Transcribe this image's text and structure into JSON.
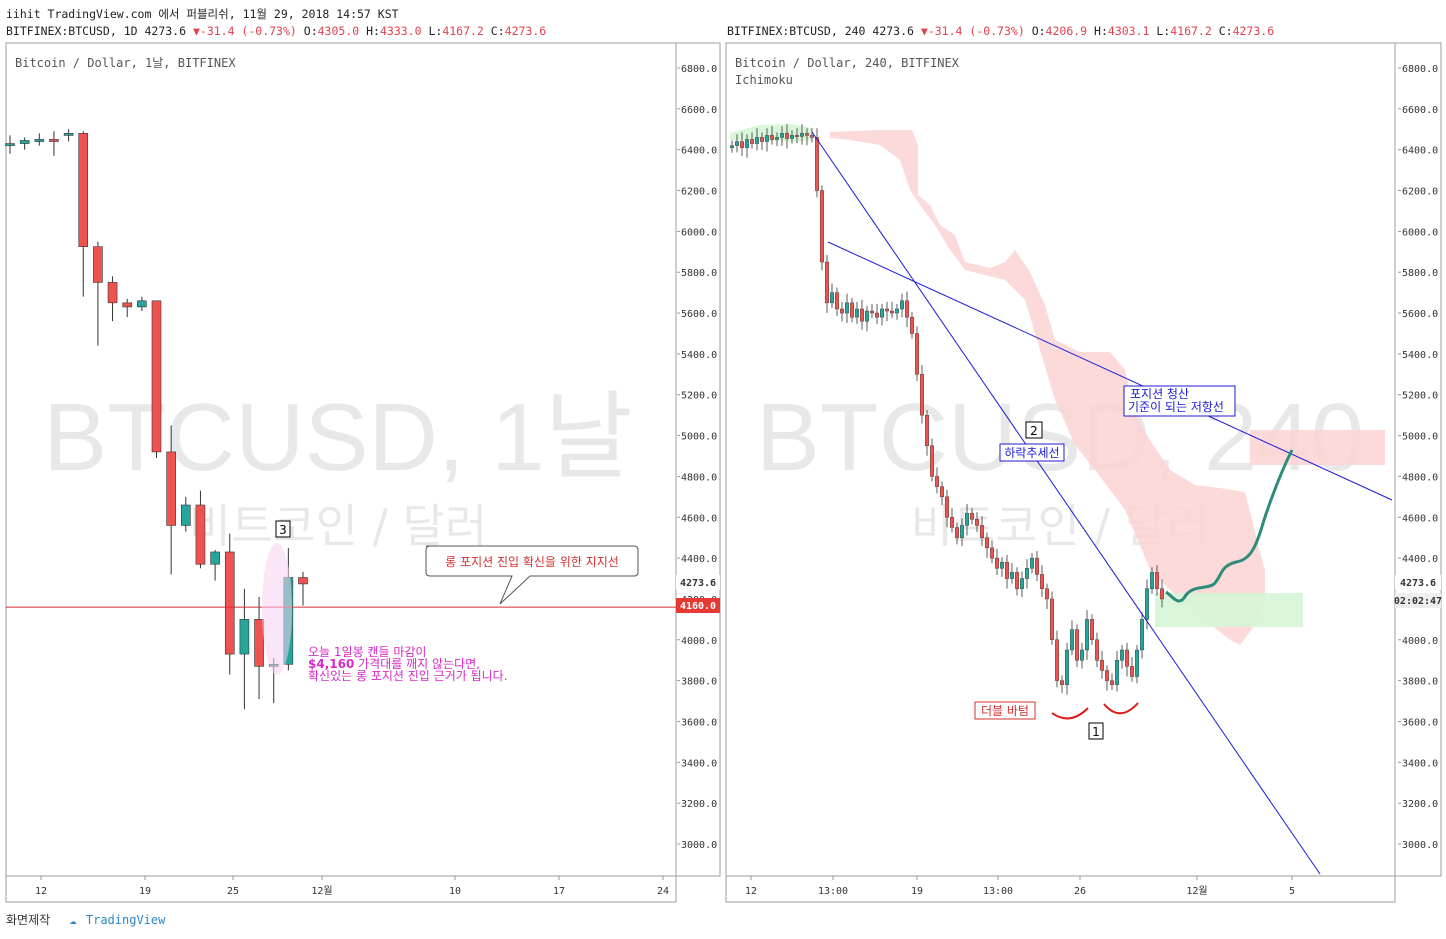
{
  "header": {
    "line1": "iihit TradingView.com 에서 퍼블리쉬, 11월 29, 2018 14:57 KST",
    "left": {
      "symbol": "BITFINEX:BTCUSD, 1D 4273.6",
      "chg": "-31.4 (-0.73%)",
      "o_label": "O:",
      "o": "4305.0",
      "h_label": "H:",
      "h": "4333.0",
      "l_label": "L:",
      "l": "4167.2",
      "c_label": "C:",
      "c": "4273.6"
    },
    "right": {
      "symbol": "BITFINEX:BTCUSD, 240 4273.6",
      "chg": "-31.4 (-0.73%)",
      "o_label": "O:",
      "o": "4206.9",
      "h_label": "H:",
      "h": "4303.1",
      "l_label": "L:",
      "l": "4167.2",
      "c_label": "C:",
      "c": "4273.6"
    }
  },
  "footer": {
    "made_by": "화면제작",
    "brand": "TradingView"
  },
  "colors": {
    "up": "#26a69a",
    "down": "#ef5350",
    "annotation_blue": "#1c1cd6",
    "support_red": "#d32f2f",
    "magenta": "#d829c9",
    "projection": "#2e8b7a",
    "cloud_red": "#fbd3d3",
    "cloud_green": "#d6f5d6"
  },
  "chart_data": [
    {
      "type": "candlestick",
      "title": "Bitcoin / Dollar, 1날, BITFINEX",
      "watermark": "BTCUSD, 1날",
      "watermark_sub": "비트코인 / 달러",
      "ylim": [
        2850,
        6900
      ],
      "y_ticks": [
        "6800.0",
        "6600.0",
        "6400.0",
        "6200.0",
        "6000.0",
        "5800.0",
        "5600.0",
        "5400.0",
        "5200.0",
        "5000.0",
        "4800.0",
        "4600.0",
        "4400.0",
        "4200.0",
        "4000.0",
        "3800.0",
        "3600.0",
        "3400.0",
        "3200.0",
        "3000.0"
      ],
      "x_ticks": [
        "12",
        "19",
        "25",
        "12월",
        "10",
        "17",
        "24"
      ],
      "last_price": "4273.6",
      "support_level": "4160.0",
      "candles": [
        {
          "o": 6420,
          "h": 6470,
          "l": 6380,
          "c": 6430
        },
        {
          "o": 6430,
          "h": 6460,
          "l": 6400,
          "c": 6445
        },
        {
          "o": 6440,
          "h": 6480,
          "l": 6420,
          "c": 6450
        },
        {
          "o": 6450,
          "h": 6490,
          "l": 6370,
          "c": 6440
        },
        {
          "o": 6470,
          "h": 6500,
          "l": 6440,
          "c": 6480
        },
        {
          "o": 6480,
          "h": 6490,
          "l": 5680,
          "c": 5925
        },
        {
          "o": 5925,
          "h": 5950,
          "l": 5440,
          "c": 5750
        },
        {
          "o": 5750,
          "h": 5780,
          "l": 5560,
          "c": 5650
        },
        {
          "o": 5650,
          "h": 5670,
          "l": 5580,
          "c": 5630
        },
        {
          "o": 5630,
          "h": 5680,
          "l": 5610,
          "c": 5660
        },
        {
          "o": 5660,
          "h": 5660,
          "l": 4890,
          "c": 4920
        },
        {
          "o": 4920,
          "h": 5050,
          "l": 4320,
          "c": 4560
        },
        {
          "o": 4560,
          "h": 4700,
          "l": 4530,
          "c": 4660
        },
        {
          "o": 4660,
          "h": 4730,
          "l": 4350,
          "c": 4370
        },
        {
          "o": 4370,
          "h": 4440,
          "l": 4290,
          "c": 4430
        },
        {
          "o": 4430,
          "h": 4520,
          "l": 3830,
          "c": 3930
        },
        {
          "o": 3930,
          "h": 4250,
          "l": 3660,
          "c": 4100
        },
        {
          "o": 4100,
          "h": 4210,
          "l": 3710,
          "c": 3870
        },
        {
          "o": 3870,
          "h": 3910,
          "l": 3690,
          "c": 3880
        },
        {
          "o": 3880,
          "h": 4450,
          "l": 3850,
          "c": 4305
        },
        {
          "o": 4305,
          "h": 4333,
          "l": 4167,
          "c": 4273.6
        }
      ],
      "annotations": {
        "callout": "롱 포지션 진입 확신을 위한 지지선",
        "marker3": "3",
        "note_line1": "오늘 1일봉 캔들 마감이",
        "note_line2_bold": "$4,160",
        "note_line2_rest": " 가격대를 깨지 않는다면,",
        "note_line3": "확신있는 롱 포지션 진입 근거가 됩니다."
      }
    },
    {
      "type": "candlestick",
      "title": "Bitcoin / Dollar, 240, BITFINEX",
      "indicator": "Ichimoku",
      "watermark": "BTCUSD, 240",
      "watermark_sub": "비트코인 / 달러",
      "ylim": [
        2850,
        6900
      ],
      "y_ticks": [
        "6800.0",
        "6600.0",
        "6400.0",
        "6200.0",
        "6000.0",
        "5800.0",
        "5600.0",
        "5400.0",
        "5200.0",
        "5000.0",
        "4800.0",
        "4600.0",
        "4400.0",
        "4200.0",
        "4000.0",
        "3800.0",
        "3600.0",
        "3400.0",
        "3200.0",
        "3000.0"
      ],
      "x_ticks": [
        "12",
        "13:00",
        "19",
        "13:00",
        "26",
        "12월",
        "5"
      ],
      "last_price": "4273.6",
      "countdown": "02:02:47",
      "annotations": {
        "downtrend": "하락추세선",
        "marker2": "2",
        "resistance": [
          "포지션 청산",
          "기준이 되는 저항선"
        ],
        "double_bottom": "더블 바텀",
        "marker1": "1"
      },
      "closes": [
        6420,
        6440,
        6410,
        6450,
        6430,
        6460,
        6440,
        6470,
        6450,
        6460,
        6480,
        6455,
        6470,
        6465,
        6480,
        6470,
        6460,
        6200,
        5850,
        5650,
        5700,
        5620,
        5600,
        5650,
        5580,
        5620,
        5560,
        5610,
        5600,
        5580,
        5620,
        5610,
        5600,
        5620,
        5660,
        5580,
        5500,
        5300,
        5100,
        4950,
        4800,
        4750,
        4700,
        4600,
        4550,
        4500,
        4560,
        4620,
        4590,
        4560,
        4500,
        4450,
        4400,
        4350,
        4380,
        4300,
        4330,
        4250,
        4300,
        4350,
        4400,
        4320,
        4250,
        4200,
        4000,
        3800,
        3780,
        3950,
        4050,
        3900,
        3950,
        4100,
        4000,
        3900,
        3850,
        3800,
        3780,
        3900,
        3950,
        3870,
        3820,
        3950,
        4100,
        4250,
        4330,
        4250,
        4200
      ]
    }
  ]
}
